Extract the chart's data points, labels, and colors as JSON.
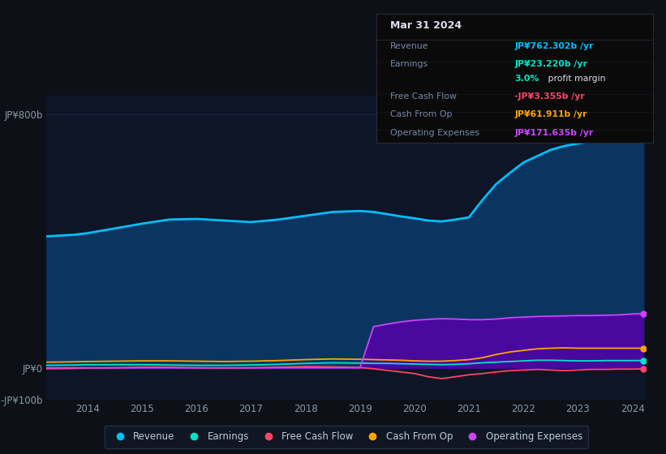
{
  "bg_color": "#0d1117",
  "plot_bg_color": "#0d1526",
  "years": [
    2013.25,
    2013.75,
    2014.0,
    2014.5,
    2015.0,
    2015.5,
    2016.0,
    2016.5,
    2017.0,
    2017.5,
    2018.0,
    2018.5,
    2019.0,
    2019.25,
    2019.5,
    2019.75,
    2020.0,
    2020.25,
    2020.5,
    2020.75,
    2021.0,
    2021.25,
    2021.5,
    2021.75,
    2022.0,
    2022.25,
    2022.5,
    2022.75,
    2023.0,
    2023.25,
    2023.5,
    2023.75,
    2024.0,
    2024.2
  ],
  "revenue": [
    415,
    420,
    425,
    440,
    455,
    468,
    470,
    465,
    460,
    468,
    480,
    492,
    495,
    492,
    485,
    478,
    472,
    465,
    462,
    468,
    475,
    530,
    580,
    615,
    648,
    668,
    688,
    700,
    708,
    715,
    732,
    750,
    760,
    762
  ],
  "earnings": [
    8,
    9,
    10,
    10,
    10,
    9,
    8,
    8,
    9,
    11,
    14,
    16,
    15,
    14,
    14,
    13,
    12,
    11,
    10,
    11,
    13,
    16,
    18,
    20,
    22,
    24,
    24,
    23,
    22,
    22,
    23,
    23,
    23,
    23.22
  ],
  "free_cash_flow": [
    -3,
    -2,
    -1,
    0,
    2,
    2,
    0,
    -1,
    0,
    2,
    4,
    3,
    1,
    -3,
    -8,
    -13,
    -18,
    -28,
    -34,
    -28,
    -22,
    -18,
    -13,
    -9,
    -7,
    -5,
    -7,
    -9,
    -7,
    -5,
    -5,
    -4,
    -4,
    -3.355
  ],
  "cash_from_op": [
    18,
    19,
    20,
    21,
    22,
    22,
    21,
    20,
    21,
    23,
    26,
    28,
    27,
    26,
    25,
    24,
    22,
    21,
    21,
    23,
    26,
    32,
    42,
    50,
    55,
    60,
    62,
    63,
    62,
    62,
    62,
    62,
    62,
    61.911
  ],
  "operating_expenses": [
    0,
    0,
    0,
    0,
    0,
    0,
    0,
    0,
    0,
    0,
    0,
    0,
    0,
    130,
    138,
    145,
    150,
    153,
    155,
    154,
    152,
    152,
    154,
    158,
    160,
    162,
    163,
    164,
    165,
    165,
    166,
    167,
    170,
    171.635
  ],
  "revenue_color": "#00bfff",
  "earnings_color": "#00e5c8",
  "free_cash_flow_color": "#ff4466",
  "cash_from_op_color": "#ffa500",
  "operating_expenses_color": "#cc44ff",
  "revenue_fill_color": "#0a3560",
  "operating_expenses_fill_color": "#5500aa",
  "ylim": [
    -100,
    860
  ],
  "ytick_positions": [
    -100,
    0,
    800
  ],
  "ytick_labels": [
    "-JP¥100b",
    "JP¥0",
    "JP¥800b"
  ],
  "xticks": [
    2014,
    2015,
    2016,
    2017,
    2018,
    2019,
    2020,
    2021,
    2022,
    2023,
    2024
  ],
  "grid_color": "#1a2540",
  "legend_labels": [
    "Revenue",
    "Earnings",
    "Free Cash Flow",
    "Cash From Op",
    "Operating Expenses"
  ],
  "legend_colors": [
    "#00bfff",
    "#00e5c8",
    "#ff4466",
    "#ffa500",
    "#cc44ff"
  ],
  "tooltip_title": "Mar 31 2024",
  "tooltip_revenue_label": "Revenue",
  "tooltip_revenue_val": "JP¥762.302b /yr",
  "tooltip_revenue_val_color": "#00bfff",
  "tooltip_earnings_label": "Earnings",
  "tooltip_earnings_val": "JP¥23.220b /yr",
  "tooltip_earnings_val_color": "#00e5c8",
  "tooltip_margin_pct": "3.0%",
  "tooltip_margin_pct_color": "#00e5c8",
  "tooltip_margin_text": " profit margin",
  "tooltip_fcf_label": "Free Cash Flow",
  "tooltip_fcf_val": "-JP¥3.355b /yr",
  "tooltip_fcf_val_color": "#ff4466",
  "tooltip_cashop_label": "Cash From Op",
  "tooltip_cashop_val": "JP¥61.911b /yr",
  "tooltip_cashop_val_color": "#ffa500",
  "tooltip_opex_label": "Operating Expenses",
  "tooltip_opex_val": "JP¥171.635b /yr",
  "tooltip_opex_val_color": "#cc44ff"
}
